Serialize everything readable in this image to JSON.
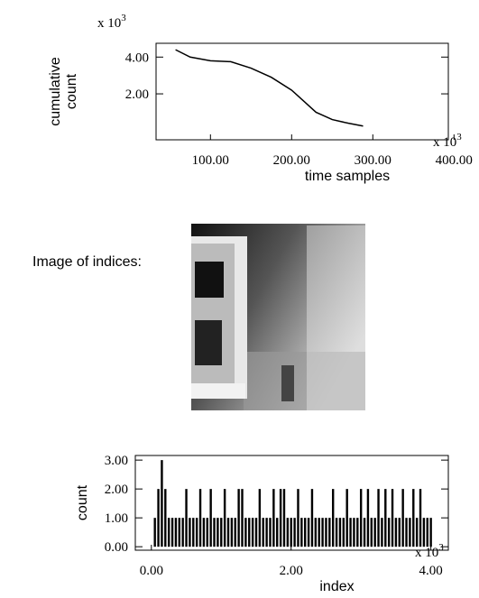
{
  "chart_data": [
    {
      "type": "line",
      "ylabel": [
        "cumulative",
        "count"
      ],
      "xlabel": "time samples",
      "y_multiplier": {
        "base": "x 10",
        "exponent": "3"
      },
      "x_multiplier": {
        "base": "x 10",
        "exponent": "3"
      },
      "color": "#000000",
      "x": [
        57,
        75,
        100,
        125,
        150,
        175,
        200,
        215,
        230,
        250,
        270,
        288
      ],
      "values": [
        4.4,
        4.0,
        3.8,
        3.75,
        3.4,
        2.9,
        2.2,
        1.6,
        1.0,
        0.6,
        0.4,
        0.25
      ],
      "xlim": [
        33,
        393
      ],
      "ylim": [
        -0.5,
        4.75
      ],
      "xticks": [
        {
          "value": 100,
          "label": "100.00"
        },
        {
          "value": 200,
          "label": "200.00"
        },
        {
          "value": 300,
          "label": "300.00"
        },
        {
          "value": 400,
          "label": "400.00"
        }
      ],
      "yticks": [
        {
          "value": 2,
          "label": "2.00"
        },
        {
          "value": 4,
          "label": "4.00"
        }
      ]
    },
    {
      "type": "bar",
      "ylabel": [
        "count"
      ],
      "xlabel": "index",
      "x_multiplier": {
        "base": "x 10",
        "exponent": "3"
      },
      "color": "#000000",
      "x": [
        0.05,
        0.1,
        0.15,
        0.2,
        0.25,
        0.3,
        0.35,
        0.4,
        0.45,
        0.5,
        0.55,
        0.6,
        0.65,
        0.7,
        0.75,
        0.8,
        0.85,
        0.9,
        0.95,
        1.0,
        1.05,
        1.1,
        1.15,
        1.2,
        1.25,
        1.3,
        1.35,
        1.4,
        1.45,
        1.5,
        1.55,
        1.6,
        1.65,
        1.7,
        1.75,
        1.8,
        1.85,
        1.9,
        1.95,
        2.0,
        2.05,
        2.1,
        2.15,
        2.2,
        2.25,
        2.3,
        2.35,
        2.4,
        2.45,
        2.5,
        2.55,
        2.6,
        2.65,
        2.7,
        2.75,
        2.8,
        2.85,
        2.9,
        2.95,
        3.0,
        3.05,
        3.1,
        3.15,
        3.2,
        3.25,
        3.3,
        3.35,
        3.4,
        3.45,
        3.5,
        3.55,
        3.6,
        3.65,
        3.7,
        3.75,
        3.8,
        3.85,
        3.9,
        3.95,
        4.0
      ],
      "values": [
        1,
        2,
        3,
        2,
        1,
        1,
        1,
        1,
        1,
        2,
        1,
        1,
        1,
        2,
        1,
        1,
        2,
        1,
        1,
        1,
        2,
        1,
        1,
        1,
        2,
        2,
        1,
        1,
        1,
        1,
        2,
        1,
        1,
        1,
        2,
        1,
        2,
        2,
        1,
        1,
        1,
        2,
        1,
        1,
        1,
        2,
        1,
        1,
        1,
        1,
        1,
        2,
        1,
        1,
        1,
        2,
        1,
        1,
        1,
        2,
        1,
        2,
        1,
        1,
        2,
        1,
        2,
        1,
        2,
        1,
        1,
        2,
        1,
        1,
        2,
        1,
        2,
        1,
        1,
        1
      ],
      "xlim": [
        -0.23,
        4.25
      ],
      "ylim": [
        -0.12,
        3.16
      ],
      "xticks": [
        {
          "value": 0,
          "label": "0.00"
        },
        {
          "value": 2,
          "label": "2.00"
        },
        {
          "value": 4,
          "label": "4.00"
        }
      ],
      "yticks": [
        {
          "value": 0,
          "label": "0.00"
        },
        {
          "value": 1,
          "label": "1.00"
        },
        {
          "value": 2,
          "label": "2.00"
        },
        {
          "value": 3,
          "label": "3.00"
        }
      ]
    }
  ],
  "image_label": "Image of indices:"
}
